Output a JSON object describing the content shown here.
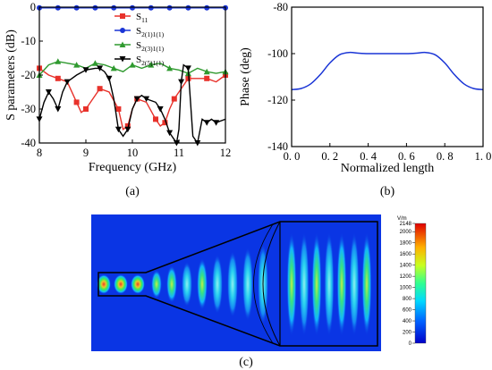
{
  "chart_data": [
    {
      "type": "line",
      "panel_label": "(a)",
      "xlabel": "Frequency (GHz)",
      "ylabel": "S parameters (dB)",
      "xlim": [
        8,
        12
      ],
      "ylim": [
        -40,
        0
      ],
      "xticks": [
        "8",
        "9",
        "10",
        "11",
        "12"
      ],
      "yticks": [
        "0",
        "-10",
        "-20",
        "-30",
        "-40"
      ],
      "legend_position": "top-right",
      "series": [
        {
          "name": "S11",
          "name_main": "S",
          "name_sub": "11",
          "color": "#e8322b",
          "marker": "square",
          "x": [
            8.0,
            8.2,
            8.4,
            8.6,
            8.8,
            8.9,
            9.0,
            9.1,
            9.3,
            9.5,
            9.7,
            9.8,
            9.9,
            10.0,
            10.1,
            10.3,
            10.5,
            10.6,
            10.7,
            10.8,
            10.9,
            11.0,
            11.2,
            11.4,
            11.6,
            11.8,
            12.0
          ],
          "y": [
            -18,
            -20,
            -21,
            -22,
            -28,
            -31,
            -30,
            -28,
            -24,
            -25,
            -30,
            -36,
            -35,
            -30,
            -27,
            -28,
            -33,
            -35,
            -34,
            -30,
            -27,
            -25,
            -21,
            -21,
            -21,
            -22,
            -20
          ]
        },
        {
          "name": "S2(1)1(1)",
          "name_main": "S",
          "name_sub": "2(1)1(1)",
          "color": "#1a35d6",
          "marker": "circle",
          "x": [
            8.0,
            8.4,
            8.8,
            9.2,
            9.6,
            10.0,
            10.4,
            10.8,
            11.2,
            11.6,
            12.0
          ],
          "y": [
            -0.2,
            -0.2,
            -0.2,
            -0.2,
            -0.2,
            -0.2,
            -0.2,
            -0.2,
            -0.2,
            -0.2,
            -0.2
          ]
        },
        {
          "name": "S2(3)1(1)",
          "name_main": "S",
          "name_sub": "2(3)1(1)",
          "color": "#2f9a2f",
          "marker": "triangle-up",
          "x": [
            8.0,
            8.2,
            8.4,
            8.6,
            8.8,
            9.0,
            9.2,
            9.4,
            9.6,
            9.8,
            10.0,
            10.2,
            10.4,
            10.6,
            10.8,
            11.0,
            11.2,
            11.4,
            11.6,
            11.8,
            12.0
          ],
          "y": [
            -20,
            -17,
            -16,
            -16.5,
            -17,
            -18,
            -16.5,
            -17,
            -18,
            -19,
            -17,
            -18,
            -17,
            -16.5,
            -18,
            -18.5,
            -19.5,
            -18,
            -19,
            -19.5,
            -19
          ]
        },
        {
          "name": "S2(5)1(1)",
          "name_main": "S",
          "name_sub": "2(5)1(1)",
          "color": "#000000",
          "marker": "triangle-down",
          "x": [
            8.0,
            8.1,
            8.2,
            8.3,
            8.4,
            8.5,
            8.6,
            8.8,
            9.0,
            9.2,
            9.3,
            9.4,
            9.5,
            9.6,
            9.7,
            9.8,
            9.9,
            10.0,
            10.1,
            10.2,
            10.3,
            10.5,
            10.6,
            10.7,
            10.8,
            10.9,
            10.95,
            11.0,
            11.05,
            11.1,
            11.2,
            11.3,
            11.4,
            11.5,
            11.6,
            11.7,
            11.8,
            12.0
          ],
          "y": [
            -33,
            -28,
            -25,
            -27,
            -30,
            -25,
            -22,
            -20,
            -18.5,
            -18,
            -18,
            -19,
            -21,
            -27,
            -36,
            -38,
            -36,
            -30,
            -27,
            -26,
            -27,
            -28,
            -30,
            -33,
            -37,
            -39,
            -40,
            -36,
            -22,
            -17,
            -18,
            -38,
            -40,
            -33,
            -34,
            -33,
            -34,
            -33
          ]
        }
      ]
    },
    {
      "type": "line",
      "panel_label": "(b)",
      "xlabel": "Normalized length",
      "ylabel": "Phase (deg)",
      "xlim": [
        0,
        1
      ],
      "ylim": [
        -140,
        -80
      ],
      "xticks": [
        "0. 0",
        "0. 2",
        "0. 4",
        "0. 6",
        "0. 8",
        "1. 0"
      ],
      "yticks": [
        "-80",
        "-100",
        "-120",
        "-140"
      ],
      "series": [
        {
          "color": "#1a35d6",
          "x": [
            0.0,
            0.05,
            0.1,
            0.15,
            0.2,
            0.25,
            0.3,
            0.35,
            0.4,
            0.45,
            0.5,
            0.55,
            0.6,
            0.65,
            0.7,
            0.75,
            0.8,
            0.85,
            0.9,
            0.95,
            1.0
          ],
          "y": [
            -115.5,
            -115,
            -113,
            -109,
            -104,
            -100.5,
            -99.5,
            -99.8,
            -100,
            -100,
            -100,
            -100,
            -100,
            -99.8,
            -99.5,
            -100.5,
            -104,
            -109,
            -113,
            -115,
            -115.5
          ]
        }
      ]
    },
    {
      "type": "heatmap",
      "panel_label": "(c)",
      "colorbar_unit": "V/m",
      "colorbar_ticks": [
        "2148",
        "2000",
        "1800",
        "1600",
        "1400",
        "1200",
        "1000",
        "800",
        "600",
        "400",
        "200",
        "0"
      ],
      "colorbar_range": [
        0,
        2148
      ]
    }
  ]
}
